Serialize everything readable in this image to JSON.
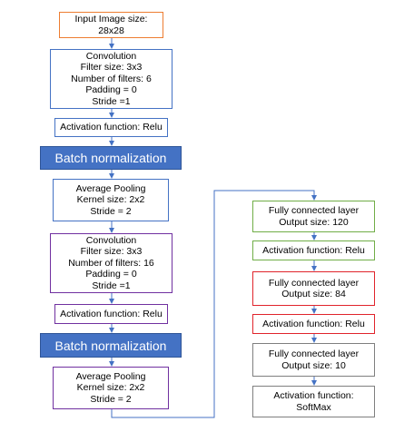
{
  "colors": {
    "orange": "#ed7d31",
    "blue": "#4472c4",
    "purple": "#7030a0",
    "green": "#70ad47",
    "red": "#e0242b",
    "gray": "#7f7f7f",
    "bn_fill": "#4472c4"
  },
  "left_column": {
    "input": {
      "line1": "Input Image size:",
      "line2": "28x28"
    },
    "conv1": {
      "line1": "Convolution",
      "line2": "Filter size: 3x3",
      "line3": "Number of filters: 6",
      "line4": "Padding = 0",
      "line5": "Stride =1"
    },
    "act1": {
      "line1": "Activation function: Relu"
    },
    "bn1": {
      "label": "Batch normalization"
    },
    "pool1": {
      "line1": "Average Pooling",
      "line2": "Kernel size: 2x2",
      "line3": "Stride = 2"
    },
    "conv2": {
      "line1": "Convolution",
      "line2": "Filter size: 3x3",
      "line3": "Number of filters: 16",
      "line4": "Padding = 0",
      "line5": "Stride =1"
    },
    "act2": {
      "line1": "Activation function: Relu"
    },
    "bn2": {
      "label": "Batch normalization"
    },
    "pool2": {
      "line1": "Average Pooling",
      "line2": "Kernel size: 2x2",
      "line3": "Stride = 2"
    }
  },
  "right_column": {
    "fc1": {
      "line1": "Fully connected layer",
      "line2": "Output size: 120"
    },
    "act3": {
      "line1": "Activation function: Relu"
    },
    "fc2": {
      "line1": "Fully connected layer",
      "line2": "Output size: 84"
    },
    "act4": {
      "line1": "Activation function: Relu"
    },
    "fc3": {
      "line1": "Fully connected layer",
      "line2": "Output size: 10"
    },
    "act5": {
      "line1": "Activation function:",
      "line2": "SoftMax"
    }
  }
}
